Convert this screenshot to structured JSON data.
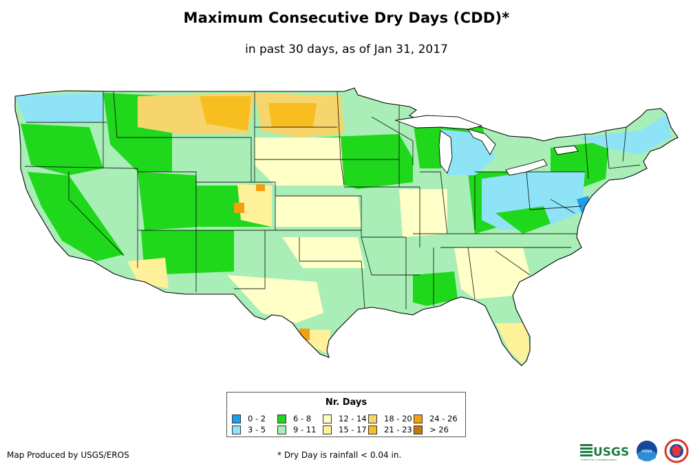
{
  "title": "Maximum Consecutive Dry Days (CDD)*",
  "subtitle": "in past 30 days, as of Jan 31, 2017",
  "legend": {
    "title": "Nr. Days",
    "items": [
      {
        "label": "0 - 2",
        "color": "#1c9fe8"
      },
      {
        "label": "3 - 5",
        "color": "#8fe3f7"
      },
      {
        "label": "6 - 8",
        "color": "#1fd71b"
      },
      {
        "label": "9 - 11",
        "color": "#a8eeb6"
      },
      {
        "label": "12 - 14",
        "color": "#ffffc8"
      },
      {
        "label": "15 - 17",
        "color": "#fff19a"
      },
      {
        "label": "18 - 20",
        "color": "#f7d56d"
      },
      {
        "label": "21 - 23",
        "color": "#f8bd1f"
      },
      {
        "label": "24 - 26",
        "color": "#f1a012"
      },
      {
        "label": "> 26",
        "color": "#c6770e"
      }
    ]
  },
  "credit": "Map Produced by USGS/EROS",
  "footnote": "* Dry Day is rainfall < 0.04 in.",
  "logos": {
    "usgs_text": "USGS",
    "usgs_tagline": "science for a changing world",
    "noaa_text": "noaa"
  }
}
